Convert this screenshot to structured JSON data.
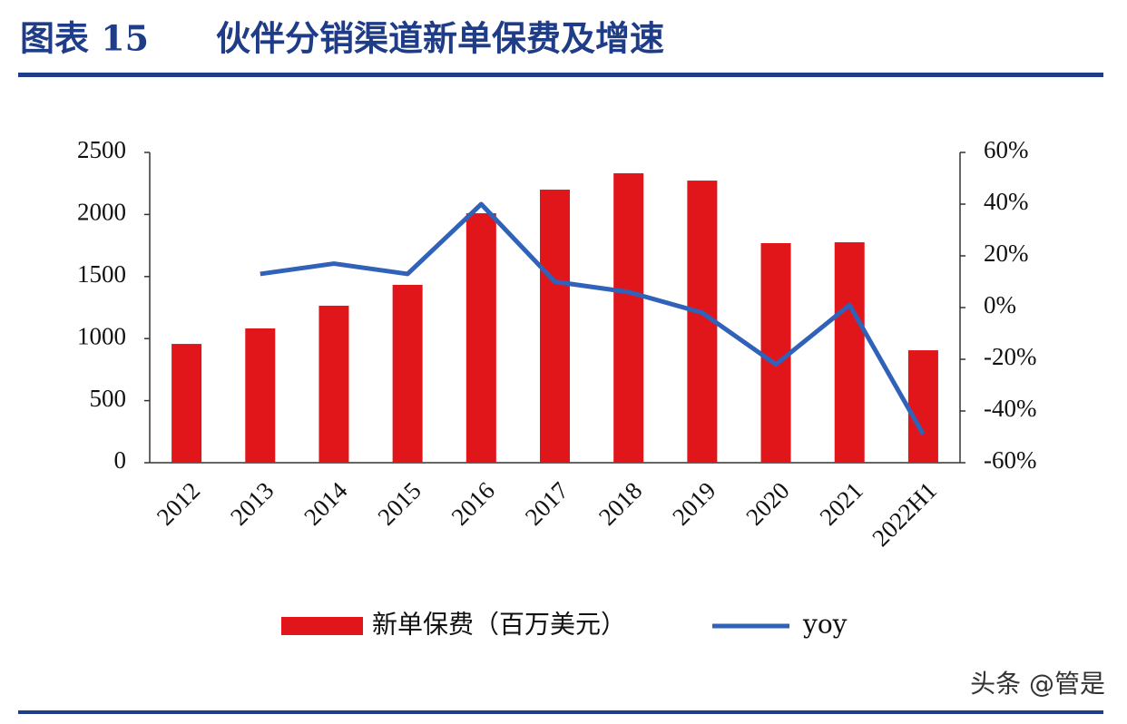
{
  "chart_data": {
    "type": "bar",
    "figure_label": "图表 15",
    "title": "伙伴分销渠道新单保费及增速",
    "categories": [
      "2012",
      "2013",
      "2014",
      "2015",
      "2016",
      "2017",
      "2018",
      "2019",
      "2020",
      "2021",
      "2022H1"
    ],
    "series": [
      {
        "name": "新单保费（百万美元）",
        "type": "bar",
        "color": "#e0161b",
        "values": [
          957,
          1082,
          1265,
          1433,
          2010,
          2200,
          2332,
          2273,
          1769,
          1776,
          906
        ]
      },
      {
        "name": "yoy",
        "type": "line",
        "axis": "y2",
        "color": "#2f62b8",
        "values": [
          null,
          13,
          17,
          13,
          40,
          10,
          6,
          -2,
          -22,
          1,
          -49
        ]
      }
    ],
    "ylim": [
      0,
      2500
    ],
    "yticks": [
      0,
      500,
      1000,
      1500,
      2000,
      2500
    ],
    "y2lim": [
      -60,
      60
    ],
    "y2ticks": [
      {
        "value": -60,
        "label": "-60%"
      },
      {
        "value": -40,
        "label": "-40%"
      },
      {
        "value": -20,
        "label": "-20%"
      },
      {
        "value": 0,
        "label": "0%"
      },
      {
        "value": 20,
        "label": "20%"
      },
      {
        "value": 40,
        "label": "40%"
      },
      {
        "value": 60,
        "label": "60%"
      }
    ],
    "grid": false,
    "legend": "bottom",
    "watermark": "头条 @管是"
  }
}
